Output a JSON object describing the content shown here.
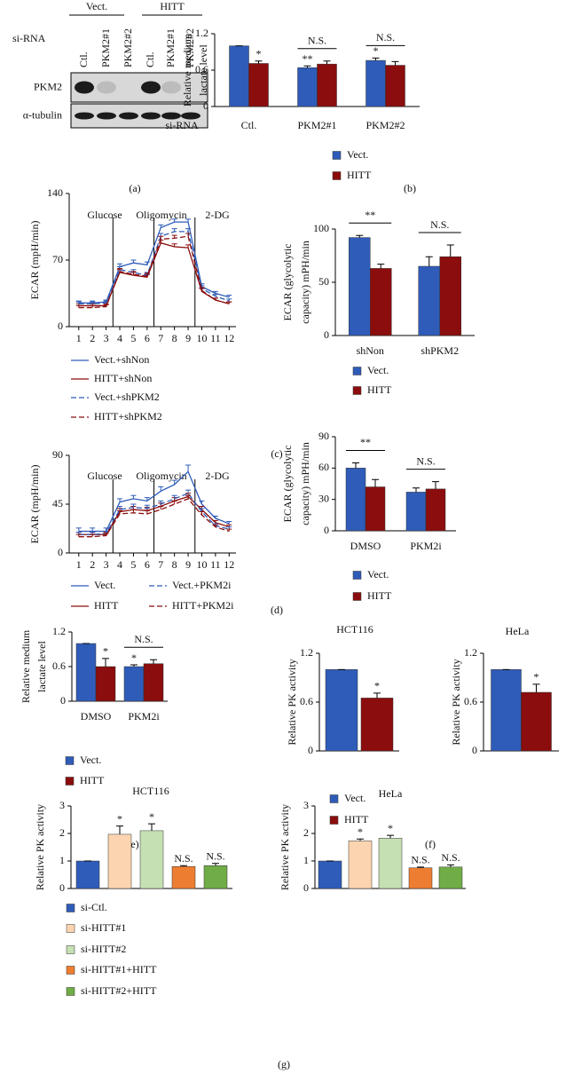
{
  "panel_labels": [
    "(a)",
    "(b)",
    "(c)",
    "(d)",
    "(e)",
    "(f)",
    "(g)"
  ],
  "blot": {
    "groups": [
      "Vect.",
      "HITT"
    ],
    "row_label": "si-RNA",
    "lanes": [
      "Ctl.",
      "PKM2#1",
      "PKM2#2",
      "Ctl.",
      "PKM2#1",
      "PKM2#2"
    ],
    "bands": [
      "PKM2",
      "α-tubulin"
    ]
  },
  "chart_data": [
    {
      "type": "bar",
      "ylabel": [
        "Relative medium",
        "lactate level"
      ],
      "xlabel": "si-RNA",
      "categories": [
        "Ctl.",
        "PKM2#1",
        "PKM2#2"
      ],
      "series": [
        {
          "name": "Vect.",
          "color": "#2f5cb8",
          "values": [
            1.0,
            0.64,
            0.76
          ],
          "errors": [
            0,
            0.03,
            0.04
          ],
          "annotations": [
            null,
            "**",
            "*"
          ]
        },
        {
          "name": "HITT",
          "color": "#8b0d0d",
          "values": [
            0.71,
            0.7,
            0.68
          ],
          "errors": [
            0.04,
            0.05,
            0.06
          ],
          "annotations": [
            "*",
            null,
            null
          ]
        }
      ],
      "category_annotations": [
        null,
        "N.S.",
        "N.S."
      ],
      "ylim": [
        0,
        1.2
      ],
      "yticks": [
        0,
        0.6,
        1.2
      ]
    },
    {
      "type": "line",
      "ylabel": [
        "ECAR (mpH/min)"
      ],
      "annotations": [
        "Glucose",
        "Oligomycin",
        "2-DG"
      ],
      "vlines_x": [
        3.5,
        6.5,
        9.5
      ],
      "x": [
        1,
        2,
        3,
        4,
        5,
        6,
        7,
        8,
        9,
        10,
        11,
        12
      ],
      "xlim": [
        0.3,
        12.5
      ],
      "xticks": [
        1,
        2,
        3,
        4,
        5,
        6,
        7,
        8,
        9,
        10,
        11,
        12
      ],
      "ylim": [
        0,
        140
      ],
      "yticks": [
        0,
        70,
        140
      ],
      "series": [
        {
          "name": "Vect.+shNon",
          "color": "#2f5cb8",
          "dash": false,
          "values": [
            25,
            25,
            26,
            63,
            67,
            65,
            104,
            110,
            110,
            42,
            35,
            31
          ],
          "errors": [
            2,
            2,
            2,
            3,
            3,
            3,
            3,
            3,
            3,
            3,
            2,
            2
          ]
        },
        {
          "name": "HITT+shNon",
          "color": "#8b0d0d",
          "dash": false,
          "values": [
            22,
            22,
            22,
            57,
            54,
            52,
            88,
            84,
            83,
            37,
            28,
            24
          ],
          "errors": [
            2,
            2,
            2,
            3,
            3,
            3,
            3,
            3,
            3,
            3,
            2,
            2
          ]
        },
        {
          "name": "Vect.+shPKM2",
          "color": "#2f5cb8",
          "dash": true,
          "values": [
            24,
            24,
            25,
            60,
            57,
            54,
            95,
            100,
            100,
            40,
            32,
            27
          ],
          "errors": [
            2,
            2,
            2,
            3,
            3,
            3,
            3,
            3,
            3,
            3,
            2,
            2
          ]
        },
        {
          "name": "HITT+shPKM2",
          "color": "#8b0d0d",
          "dash": true,
          "values": [
            20,
            20,
            21,
            58,
            55,
            53,
            92,
            93,
            95,
            38,
            28,
            24
          ],
          "errors": [
            2,
            2,
            2,
            3,
            3,
            3,
            3,
            3,
            3,
            3,
            2,
            2
          ]
        }
      ]
    },
    {
      "type": "bar",
      "ylabel": [
        "ECAR (glycolytic",
        "capacity) mPH/min"
      ],
      "categories": [
        "shNon",
        "shPKM2"
      ],
      "series": [
        {
          "name": "Vect.",
          "color": "#2f5cb8",
          "values": [
            92,
            65
          ],
          "errors": [
            2,
            9
          ]
        },
        {
          "name": "HITT",
          "color": "#8b0d0d",
          "values": [
            63,
            74
          ],
          "errors": [
            4,
            11
          ]
        }
      ],
      "category_annotations": [
        "**",
        "N.S."
      ],
      "ylim": [
        0,
        100
      ],
      "yticks": [
        0,
        50,
        100
      ]
    },
    {
      "type": "line",
      "ylabel": [
        "ECAR (mpH/min)"
      ],
      "annotations": [
        "Glucose",
        "Oligomycin",
        "2-DG"
      ],
      "vlines_x": [
        3.5,
        6.5,
        9.5
      ],
      "x": [
        1,
        2,
        3,
        4,
        5,
        6,
        7,
        8,
        9,
        10,
        11,
        12
      ],
      "xlim": [
        0.3,
        12.5
      ],
      "xticks": [
        1,
        2,
        3,
        4,
        5,
        6,
        7,
        8,
        9,
        10,
        11,
        12
      ],
      "ylim": [
        0,
        90
      ],
      "yticks": [
        0,
        45,
        90
      ],
      "series": [
        {
          "name": "Vect.",
          "color": "#2f5cb8",
          "dash": false,
          "values": [
            20,
            20,
            20,
            47,
            50,
            48,
            57,
            63,
            75,
            45,
            32,
            27
          ],
          "errors": [
            3,
            3,
            3,
            3,
            3,
            3,
            4,
            4,
            6,
            3,
            2,
            2
          ]
        },
        {
          "name": "HITT",
          "color": "#8b0d0d",
          "dash": false,
          "values": [
            17,
            17,
            17,
            38,
            40,
            39,
            43,
            48,
            52,
            40,
            28,
            24
          ],
          "errors": [
            2,
            2,
            2,
            3,
            3,
            3,
            3,
            3,
            3,
            3,
            2,
            2
          ]
        },
        {
          "name": "Vect.+PKM2i",
          "color": "#2f5cb8",
          "dash": true,
          "values": [
            17,
            17,
            18,
            40,
            42,
            41,
            45,
            50,
            55,
            38,
            25,
            22
          ],
          "errors": [
            2,
            2,
            2,
            3,
            3,
            3,
            3,
            3,
            3,
            3,
            2,
            2
          ]
        },
        {
          "name": "HITT+PKM2i",
          "color": "#8b0d0d",
          "dash": true,
          "values": [
            15,
            15,
            16,
            36,
            37,
            36,
            40,
            45,
            50,
            35,
            24,
            20
          ],
          "errors": [
            2,
            2,
            2,
            3,
            3,
            3,
            3,
            3,
            3,
            3,
            2,
            2
          ]
        }
      ]
    },
    {
      "type": "bar",
      "ylabel": [
        "ECAR (glycolytic",
        "capacity) mPH/min"
      ],
      "categories": [
        "DMSO",
        "PKM2i"
      ],
      "series": [
        {
          "name": "Vect.",
          "color": "#2f5cb8",
          "values": [
            60,
            37
          ],
          "errors": [
            5,
            4
          ]
        },
        {
          "name": "HITT",
          "color": "#8b0d0d",
          "values": [
            42,
            40
          ],
          "errors": [
            7,
            7
          ]
        }
      ],
      "category_annotations": [
        "**",
        "N.S."
      ],
      "ylim": [
        0,
        90
      ],
      "yticks": [
        0,
        30,
        60,
        90
      ]
    },
    {
      "type": "bar",
      "ylabel": [
        "Relative medium",
        "lactate level"
      ],
      "categories": [
        "DMSO",
        "PKM2i"
      ],
      "series": [
        {
          "name": "Vect.",
          "color": "#2f5cb8",
          "values": [
            1.0,
            0.6
          ],
          "errors": [
            0,
            0.03
          ],
          "annotations": [
            null,
            "*"
          ]
        },
        {
          "name": "HITT",
          "color": "#8b0d0d",
          "values": [
            0.6,
            0.65
          ],
          "errors": [
            0.14,
            0.07
          ],
          "annotations": [
            "*",
            null
          ]
        }
      ],
      "category_annotations": [
        null,
        "N.S."
      ],
      "ylim": [
        0,
        1.2
      ],
      "yticks": [
        0,
        0.6,
        1.2
      ]
    },
    {
      "type": "bar",
      "title": "HCT116",
      "ylabel": [
        "Relative PK activity"
      ],
      "categories": [
        null
      ],
      "series": [
        {
          "name": "Vect.",
          "color": "#2f5cb8",
          "values": [
            1.0
          ],
          "errors": [
            0
          ],
          "annotations": [
            null
          ]
        },
        {
          "name": "HITT",
          "color": "#8b0d0d",
          "values": [
            0.65
          ],
          "errors": [
            0.06
          ],
          "annotations": [
            "*"
          ]
        }
      ],
      "ylim": [
        0,
        1.2
      ],
      "yticks": [
        0,
        0.6,
        1.2
      ]
    },
    {
      "type": "bar",
      "title": "HeLa",
      "ylabel": [
        "Relative PK activity"
      ],
      "categories": [
        null
      ],
      "series": [
        {
          "color": "#2f5cb8",
          "values": [
            1.0
          ],
          "errors": [
            0
          ],
          "annotations": [
            null
          ]
        },
        {
          "color": "#8b0d0d",
          "values": [
            0.72
          ],
          "errors": [
            0.1
          ],
          "annotations": [
            "*"
          ]
        }
      ],
      "ylim": [
        0,
        1.2
      ],
      "yticks": [
        0,
        0.6,
        1.2
      ]
    },
    {
      "type": "bar",
      "title": "HCT116",
      "ylabel": [
        "Relative PK activity"
      ],
      "categories": [
        null
      ],
      "series": [
        {
          "name": "si-Ctl.",
          "color": "#2f5cb8",
          "values": [
            1.0
          ],
          "errors": [
            0
          ],
          "annotations": [
            null
          ]
        },
        {
          "name": "si-HITT#1",
          "color": "#fcd5b0",
          "values": [
            1.97
          ],
          "errors": [
            0.3
          ],
          "annotations": [
            "*"
          ]
        },
        {
          "name": "si-HITT#2",
          "color": "#c5e0b3",
          "values": [
            2.1
          ],
          "errors": [
            0.25
          ],
          "annotations": [
            "*"
          ]
        },
        {
          "name": "si-HITT#1+HITT",
          "color": "#ed7d31",
          "values": [
            0.8
          ],
          "errors": [
            0.03
          ],
          "annotations": [
            "N.S."
          ]
        },
        {
          "name": "si-HITT#2+HITT",
          "color": "#70ad47",
          "values": [
            0.83
          ],
          "errors": [
            0.08
          ],
          "annotations": [
            "N.S."
          ]
        }
      ],
      "ylim": [
        0,
        3
      ],
      "yticks": [
        0,
        1,
        2,
        3
      ]
    },
    {
      "type": "bar",
      "title": "HeLa",
      "ylabel": [
        "Relative PK activity"
      ],
      "categories": [
        null
      ],
      "series": [
        {
          "color": "#2f5cb8",
          "values": [
            1.0
          ],
          "errors": [
            0
          ],
          "annotations": [
            null
          ]
        },
        {
          "color": "#fcd5b0",
          "values": [
            1.73
          ],
          "errors": [
            0.07
          ],
          "annotations": [
            "*"
          ]
        },
        {
          "color": "#c5e0b3",
          "values": [
            1.83
          ],
          "errors": [
            0.1
          ],
          "annotations": [
            "*"
          ]
        },
        {
          "color": "#ed7d31",
          "values": [
            0.75
          ],
          "errors": [
            0.03
          ],
          "annotations": [
            "N.S."
          ]
        },
        {
          "color": "#70ad47",
          "values": [
            0.78
          ],
          "errors": [
            0.08
          ],
          "annotations": [
            "N.S."
          ]
        }
      ],
      "ylim": [
        0,
        3
      ],
      "yticks": [
        0,
        1,
        2,
        3
      ]
    }
  ]
}
